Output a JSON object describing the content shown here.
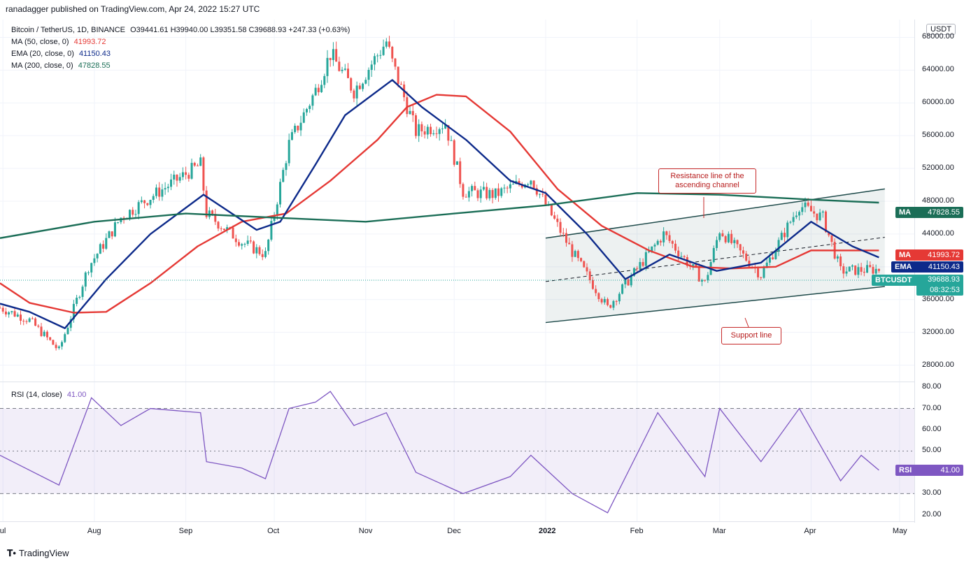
{
  "header": {
    "published": "ranadagger published on TradingView.com, Apr 24, 2022 15:27 UTC"
  },
  "legend": {
    "symbol": "Bitcoin / TetherUS, 1D, BINANCE",
    "ohlc": "O39441.61 H39940.00 L39351.58 C39688.93 +247.33 (+0.63%)",
    "ma50_label": "MA (50, close, 0)",
    "ma50_value": "41993.72",
    "ema20_label": "EMA (20, close, 0)",
    "ema20_value": "41150.43",
    "ma200_label": "MA (200, close, 0)",
    "ma200_value": "47828.55"
  },
  "rsi_legend": {
    "label": "RSI (14, close)",
    "value": "41.00"
  },
  "currency": "USDT",
  "price_axis": [
    "68000.00",
    "64000.00",
    "60000.00",
    "56000.00",
    "52000.00",
    "48000.00",
    "44000.00",
    "40000.00",
    "36000.00",
    "32000.00",
    "28000.00"
  ],
  "rsi_axis": [
    "80.00",
    "70.00",
    "60.00",
    "50.00",
    "40.00",
    "30.00",
    "20.00"
  ],
  "time_axis": [
    "Jul",
    "Aug",
    "Sep",
    "Oct",
    "Nov",
    "Dec",
    "2022",
    "Feb",
    "Mar",
    "Apr",
    "May"
  ],
  "pills": {
    "ma200": {
      "tag": "MA",
      "value": "47828.55"
    },
    "ma50": {
      "tag": "MA",
      "value": "41993.72"
    },
    "ema20": {
      "tag": "EMA",
      "value": "41150.43"
    },
    "price": {
      "tag": "BTCUSDT",
      "value": "39688.93",
      "countdown": "08:32:53"
    },
    "rsi": {
      "tag": "RSI",
      "value": "41.00"
    }
  },
  "annotations": {
    "resistance": "Resistance line of the ascending channel",
    "support": "Support line"
  },
  "footer": {
    "brand": "TradingView"
  },
  "colors": {
    "up": "#26a69a",
    "down": "#ef5350",
    "ma50": "#e53935",
    "ema20": "#0d2a8a",
    "ma200": "#1b6e57",
    "rsi": "#7e57c2",
    "channel": "#1e4a4a"
  },
  "chart_data": [
    {
      "type": "candlestick",
      "title": "Bitcoin / TetherUS, 1D, BINANCE",
      "ylim": [
        26000,
        70000
      ],
      "x_range": [
        "2021-06-30",
        "2022-05-06"
      ],
      "series": [
        {
          "name": "MA (50, close, 0)",
          "points": [
            [
              "2021-06-30",
              38000
            ],
            [
              "2021-07-10",
              35600
            ],
            [
              "2021-07-25",
              34400
            ],
            [
              "2021-08-05",
              34500
            ],
            [
              "2021-08-20",
              38000
            ],
            [
              "2021-09-05",
              42500
            ],
            [
              "2021-09-20",
              45500
            ],
            [
              "2021-10-05",
              46500
            ],
            [
              "2021-10-20",
              50500
            ],
            [
              "2021-11-05",
              55500
            ],
            [
              "2021-11-15",
              59500
            ],
            [
              "2021-11-25",
              61000
            ],
            [
              "2021-12-05",
              60800
            ],
            [
              "2021-12-20",
              56500
            ],
            [
              "2022-01-05",
              49500
            ],
            [
              "2022-01-20",
              45000
            ],
            [
              "2022-02-05",
              42000
            ],
            [
              "2022-02-20",
              40000
            ],
            [
              "2022-03-05",
              39800
            ],
            [
              "2022-03-20",
              40000
            ],
            [
              "2022-04-01",
              42000
            ],
            [
              "2022-04-24",
              41994
            ]
          ]
        },
        {
          "name": "EMA (20, close, 0)",
          "points": [
            [
              "2021-06-30",
              35500
            ],
            [
              "2021-07-10",
              34500
            ],
            [
              "2021-07-22",
              32500
            ],
            [
              "2021-08-05",
              38500
            ],
            [
              "2021-08-20",
              44000
            ],
            [
              "2021-09-07",
              48800
            ],
            [
              "2021-09-25",
              44500
            ],
            [
              "2021-10-03",
              45500
            ],
            [
              "2021-10-15",
              52500
            ],
            [
              "2021-10-25",
              58500
            ],
            [
              "2021-11-10",
              62800
            ],
            [
              "2021-11-20",
              59500
            ],
            [
              "2021-12-05",
              55500
            ],
            [
              "2021-12-20",
              50500
            ],
            [
              "2022-01-01",
              49000
            ],
            [
              "2022-01-15",
              44000
            ],
            [
              "2022-01-28",
              38500
            ],
            [
              "2022-02-12",
              41500
            ],
            [
              "2022-02-28",
              39500
            ],
            [
              "2022-03-15",
              40500
            ],
            [
              "2022-04-01",
              45500
            ],
            [
              "2022-04-15",
              42500
            ],
            [
              "2022-04-24",
              41150
            ]
          ]
        },
        {
          "name": "MA (200, close, 0)",
          "points": [
            [
              "2021-06-30",
              43500
            ],
            [
              "2021-08-01",
              45500
            ],
            [
              "2021-09-01",
              46500
            ],
            [
              "2021-10-01",
              46000
            ],
            [
              "2021-11-01",
              45500
            ],
            [
              "2021-12-01",
              46500
            ],
            [
              "2022-01-01",
              47500
            ],
            [
              "2022-02-01",
              49000
            ],
            [
              "2022-03-01",
              48800
            ],
            [
              "2022-04-01",
              48200
            ],
            [
              "2022-04-24",
              47829
            ]
          ]
        }
      ],
      "candles_close": [
        [
          "2021-06-30",
          35000
        ],
        [
          "2021-07-10",
          33500
        ],
        [
          "2021-07-20",
          29800
        ],
        [
          "2021-07-30",
          40000
        ],
        [
          "2021-08-10",
          46000
        ],
        [
          "2021-08-20",
          48500
        ],
        [
          "2021-09-06",
          52500
        ],
        [
          "2021-09-08",
          46500
        ],
        [
          "2021-09-20",
          43000
        ],
        [
          "2021-09-28",
          41500
        ],
        [
          "2021-10-06",
          55000
        ],
        [
          "2021-10-15",
          61500
        ],
        [
          "2021-10-20",
          66000
        ],
        [
          "2021-10-28",
          61500
        ],
        [
          "2021-11-08",
          67500
        ],
        [
          "2021-11-10",
          64900
        ],
        [
          "2021-11-18",
          56500
        ],
        [
          "2021-11-28",
          57500
        ],
        [
          "2021-12-04",
          49200
        ],
        [
          "2021-12-15",
          48800
        ],
        [
          "2021-12-27",
          50800
        ],
        [
          "2022-01-10",
          41800
        ],
        [
          "2022-01-22",
          35000
        ],
        [
          "2022-02-10",
          44000
        ],
        [
          "2022-02-24",
          38000
        ],
        [
          "2022-03-01",
          44500
        ],
        [
          "2022-03-15",
          39000
        ],
        [
          "2022-03-28",
          47500
        ],
        [
          "2022-04-05",
          46000
        ],
        [
          "2022-04-11",
          39500
        ],
        [
          "2022-04-24",
          39689
        ]
      ],
      "annotations": [
        "Resistance line of the ascending channel",
        "Support line"
      ]
    },
    {
      "type": "line",
      "title": "RSI (14, close)",
      "ylim": [
        17,
        82
      ],
      "bands": [
        30,
        50,
        70
      ],
      "series": [
        {
          "name": "RSI (14, close)",
          "points": [
            [
              "2021-06-30",
              48
            ],
            [
              "2021-07-20",
              34
            ],
            [
              "2021-07-31",
              75
            ],
            [
              "2021-08-10",
              62
            ],
            [
              "2021-08-20",
              70
            ],
            [
              "2021-09-06",
              68
            ],
            [
              "2021-09-08",
              45
            ],
            [
              "2021-09-20",
              42
            ],
            [
              "2021-09-28",
              37
            ],
            [
              "2021-10-06",
              70
            ],
            [
              "2021-10-15",
              73
            ],
            [
              "2021-10-20",
              78
            ],
            [
              "2021-10-28",
              62
            ],
            [
              "2021-11-08",
              68
            ],
            [
              "2021-11-18",
              40
            ],
            [
              "2021-12-04",
              30
            ],
            [
              "2021-12-20",
              38
            ],
            [
              "2021-12-27",
              48
            ],
            [
              "2022-01-10",
              30
            ],
            [
              "2022-01-22",
              21
            ],
            [
              "2022-02-08",
              68
            ],
            [
              "2022-02-24",
              38
            ],
            [
              "2022-03-01",
              70
            ],
            [
              "2022-03-15",
              45
            ],
            [
              "2022-03-28",
              70
            ],
            [
              "2022-04-11",
              36
            ],
            [
              "2022-04-18",
              48
            ],
            [
              "2022-04-24",
              41
            ]
          ]
        }
      ]
    }
  ]
}
